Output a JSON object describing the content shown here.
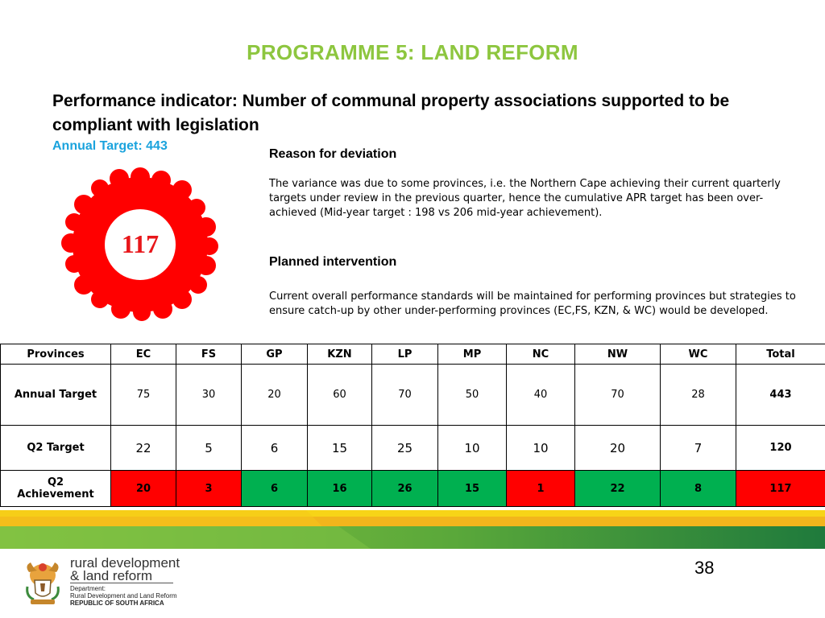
{
  "title": "PROGRAMME 5: LAND REFORM",
  "indicator": "Performance indicator:  Number of communal property associations supported to be compliant with legislation",
  "annual_target_label": "Annual Target: 443",
  "badge_value": "117",
  "reason": {
    "heading": "Reason for deviation",
    "text": "The variance was due to some provinces, i.e. the Northern Cape achieving their current quarterly targets under review in the previous quarter, hence the cumulative APR target has been over-achieved (Mid-year target : 198 vs 206 mid-year achievement)."
  },
  "intervention": {
    "heading": "Planned intervention",
    "text": "Current overall performance standards will be maintained for performing provinces but strategies to ensure catch-up by other under-performing provinces (EC,FS, KZN, & WC)  would be developed."
  },
  "table": {
    "headers": [
      "Provinces",
      "EC",
      "FS",
      "GP",
      "KZN",
      "LP",
      "MP",
      "NC",
      "NW",
      "WC",
      "Total"
    ],
    "annual": {
      "label": "Annual Target",
      "values": [
        "75",
        "30",
        "20",
        "60",
        "70",
        "50",
        "40",
        "70",
        "28"
      ],
      "total": "443"
    },
    "q2target": {
      "label": "Q2 Target",
      "values": [
        "22",
        "5",
        "6",
        "15",
        "25",
        "10",
        "10",
        "20",
        "7"
      ],
      "total": "120"
    },
    "q2ach": {
      "label_line1": "Q2",
      "label_line2": "Achievement",
      "values": [
        "20",
        "3",
        "6",
        "16",
        "26",
        "15",
        "1",
        "22",
        "8"
      ],
      "total": "117"
    }
  },
  "status_colors": {
    "under": "#ff0000",
    "met": "#00b050"
  },
  "page_number": "38",
  "footer": {
    "brand_line1": "rural development",
    "brand_line2": "& land reform",
    "dept_line1": "Department:",
    "dept_line2": "Rural Development and Land Reform",
    "republic": "REPUBLIC OF SOUTH AFRICA"
  },
  "accent_colors": {
    "title": "#8dc63f",
    "annual_target": "#1aa3dd",
    "badge": "#ff0000"
  },
  "icons": {
    "logo": "coat-of-arms-icon",
    "badge": "red-gear-badge-icon"
  }
}
